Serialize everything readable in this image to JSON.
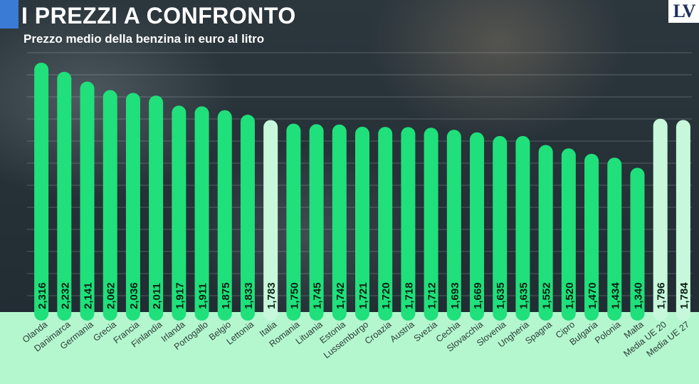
{
  "header": {
    "title": "I PREZZI A CONFRONTO",
    "subtitle": "Prezzo medio della benzina in euro al litro",
    "logo": "LV"
  },
  "colors": {
    "bar": "#1fe07a",
    "bar_highlight": "#c8f8db",
    "label_band": "#b4f7cf",
    "value_text": "#0b1f14"
  },
  "chart_data": {
    "type": "bar",
    "title": "I PREZZI A CONFRONTO",
    "subtitle": "Prezzo medio della benzina in euro al litro",
    "xlabel": "",
    "ylabel": "",
    "ylim": [
      0,
      2.4
    ],
    "grid": true,
    "highlighted": [
      "Italia",
      "Media UE 20",
      "Media UE 27"
    ],
    "categories": [
      "Olanda",
      "Danimarca",
      "Germania",
      "Grecia",
      "Francia",
      "Finlandia",
      "Irlanda",
      "Portogallo",
      "Belgio",
      "Lettonia",
      "Italia",
      "Romania",
      "Lituania",
      "Estonia",
      "Lussemburgo",
      "Croazia",
      "Austria",
      "Svezia",
      "Cechia",
      "Slovacchia",
      "Slovenia",
      "Ungheria",
      "Spagna",
      "Cipro",
      "Bulgaria",
      "Polonia",
      "Malta",
      "Media UE 20",
      "Media UE 27"
    ],
    "values": [
      2.316,
      2.232,
      2.141,
      2.062,
      2.036,
      2.011,
      1.917,
      1.911,
      1.875,
      1.833,
      1.783,
      1.75,
      1.745,
      1.742,
      1.721,
      1.72,
      1.718,
      1.712,
      1.693,
      1.669,
      1.635,
      1.635,
      1.552,
      1.52,
      1.47,
      1.434,
      1.34,
      1.796,
      1.784
    ],
    "labels": [
      "2,316",
      "2,232",
      "2,141",
      "2,062",
      "2,036",
      "2,011",
      "1,917",
      "1,911",
      "1,875",
      "1,833",
      "1,783",
      "1,750",
      "1,745",
      "1,742",
      "1,721",
      "1,720",
      "1,718",
      "1,712",
      "1,693",
      "1,669",
      "1,635",
      "1,635",
      "1,552",
      "1,520",
      "1,470",
      "1,434",
      "1,340",
      "1,796",
      "1,784"
    ]
  }
}
